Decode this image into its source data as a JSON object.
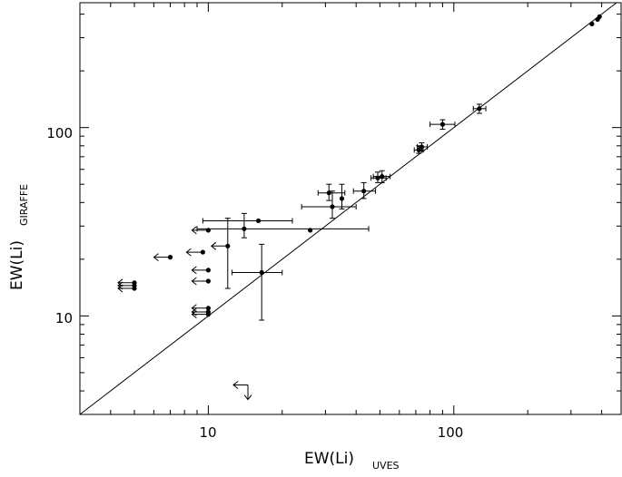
{
  "chart_data": {
    "type": "scatter",
    "title": "",
    "xlabel": "EW(Li)",
    "xlabel_sub": "UVES",
    "ylabel": "EW(Li)",
    "ylabel_sub": "GIRAFFE",
    "xscale": "log",
    "yscale": "log",
    "xlim": [
      3,
      480
    ],
    "ylim": [
      3,
      460
    ],
    "grid": false,
    "x_tick_labels": [
      "10",
      "100"
    ],
    "y_tick_labels": [
      "10",
      "100"
    ],
    "reference_line": "y = x",
    "points": [
      {
        "x": 5,
        "y": 15,
        "upper_x": true
      },
      {
        "x": 5,
        "y": 14.5,
        "upper_x": true
      },
      {
        "x": 5,
        "y": 14,
        "upper_x": true
      },
      {
        "x": 7,
        "y": 20.5,
        "upper_x": true
      },
      {
        "x": 9.5,
        "y": 21.8,
        "upper_x": true
      },
      {
        "x": 10,
        "y": 17.5,
        "upper_x": true
      },
      {
        "x": 10,
        "y": 15.3,
        "upper_x": true
      },
      {
        "x": 10,
        "y": 11,
        "upper_x": true
      },
      {
        "x": 10,
        "y": 10.5,
        "upper_x": true
      },
      {
        "x": 10,
        "y": 10.2,
        "upper_x": true
      },
      {
        "x": 10,
        "y": 28.5,
        "upper_x": true
      },
      {
        "x": 12,
        "y": 23.5,
        "upper_x": true,
        "y_err": [
          14,
          33
        ]
      },
      {
        "x": 16,
        "y": 32,
        "x_err": [
          9.5,
          22
        ]
      },
      {
        "x": 14,
        "y": 29,
        "x_err": [
          9,
          45
        ],
        "y_err": [
          26,
          35
        ]
      },
      {
        "x": 16.5,
        "y": 17,
        "x_err": [
          12.5,
          20
        ],
        "y_err": [
          9.5,
          24
        ]
      },
      {
        "x": 26,
        "y": 28.5
      },
      {
        "x": 31,
        "y": 45,
        "x_err": [
          28,
          36
        ],
        "y_err": [
          41,
          50
        ]
      },
      {
        "x": 32,
        "y": 38,
        "x_err": [
          24,
          40
        ],
        "y_err": [
          33,
          46
        ]
      },
      {
        "x": 35,
        "y": 42,
        "y_err": [
          37,
          50
        ]
      },
      {
        "x": 43,
        "y": 46,
        "x_err": [
          39,
          48
        ],
        "y_err": [
          42,
          51
        ]
      },
      {
        "x": 49,
        "y": 54,
        "x_err": [
          46,
          53
        ],
        "y_err": [
          51,
          58
        ]
      },
      {
        "x": 51,
        "y": 55,
        "x_err": [
          47,
          55
        ],
        "y_err": [
          51,
          59
        ]
      },
      {
        "x": 72,
        "y": 76,
        "x_err": [
          69,
          75
        ],
        "y_err": [
          73,
          80
        ]
      },
      {
        "x": 74,
        "y": 79,
        "x_err": [
          71,
          78
        ],
        "y_err": [
          75,
          83
        ]
      },
      {
        "x": 90,
        "y": 104,
        "x_err": [
          80,
          101
        ],
        "y_err": [
          98,
          110
        ]
      },
      {
        "x": 127,
        "y": 126,
        "x_err": [
          120,
          135
        ],
        "y_err": [
          119,
          133
        ]
      },
      {
        "x": 365,
        "y": 355
      },
      {
        "x": 385,
        "y": 375
      },
      {
        "x": 392,
        "y": 388
      }
    ],
    "special_markers": [
      {
        "x": 14.5,
        "y": 4.3,
        "type": "upper_limit_both"
      }
    ]
  }
}
